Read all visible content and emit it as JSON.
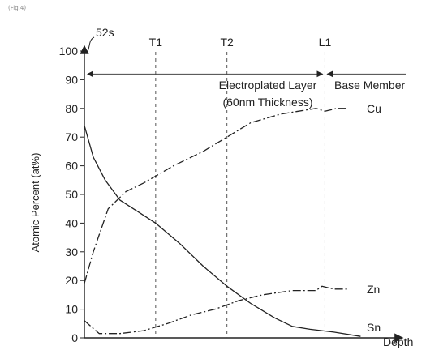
{
  "figure_label": "(Fig.4)",
  "chart_data": {
    "type": "line",
    "title": "",
    "ylabel": "Atomic Percent (at%)",
    "xlabel": "Depth",
    "ylim": [
      0,
      100
    ],
    "yticks": [
      0,
      10,
      20,
      30,
      40,
      50,
      60,
      70,
      80,
      90,
      100
    ],
    "grid": false,
    "markers": [
      {
        "label": "T1",
        "x": 0.24
      },
      {
        "label": "T2",
        "x": 0.48
      },
      {
        "label": "L1",
        "x": 0.81
      }
    ],
    "annotations": {
      "ref_label": "52s",
      "layer_label": "Electroplated Layer",
      "thickness_label": "(60nm Thickness)",
      "base_label": "Base Member"
    },
    "series": [
      {
        "name": "Cu",
        "x": [
          0,
          0.03,
          0.08,
          0.14,
          0.2,
          0.3,
          0.4,
          0.48,
          0.56,
          0.66,
          0.72,
          0.78,
          0.81,
          0.85,
          0.89
        ],
        "values": [
          19,
          30,
          45,
          51,
          54,
          60,
          65,
          70,
          75,
          78,
          79,
          80,
          79,
          80,
          80
        ]
      },
      {
        "name": "Zn",
        "x": [
          0,
          0.05,
          0.12,
          0.2,
          0.28,
          0.36,
          0.44,
          0.52,
          0.6,
          0.7,
          0.78,
          0.8,
          0.84,
          0.89
        ],
        "values": [
          6,
          1.5,
          1.5,
          2.5,
          5,
          8,
          10,
          13,
          15,
          16.5,
          16.5,
          18,
          17,
          17
        ]
      },
      {
        "name": "Sn",
        "x": [
          0,
          0.03,
          0.07,
          0.12,
          0.18,
          0.24,
          0.32,
          0.4,
          0.48,
          0.56,
          0.64,
          0.7,
          0.76,
          0.84,
          0.93
        ],
        "values": [
          74,
          63,
          55,
          48,
          44,
          40,
          33,
          25,
          18,
          12,
          7,
          4,
          3,
          2,
          0.5
        ]
      }
    ]
  }
}
